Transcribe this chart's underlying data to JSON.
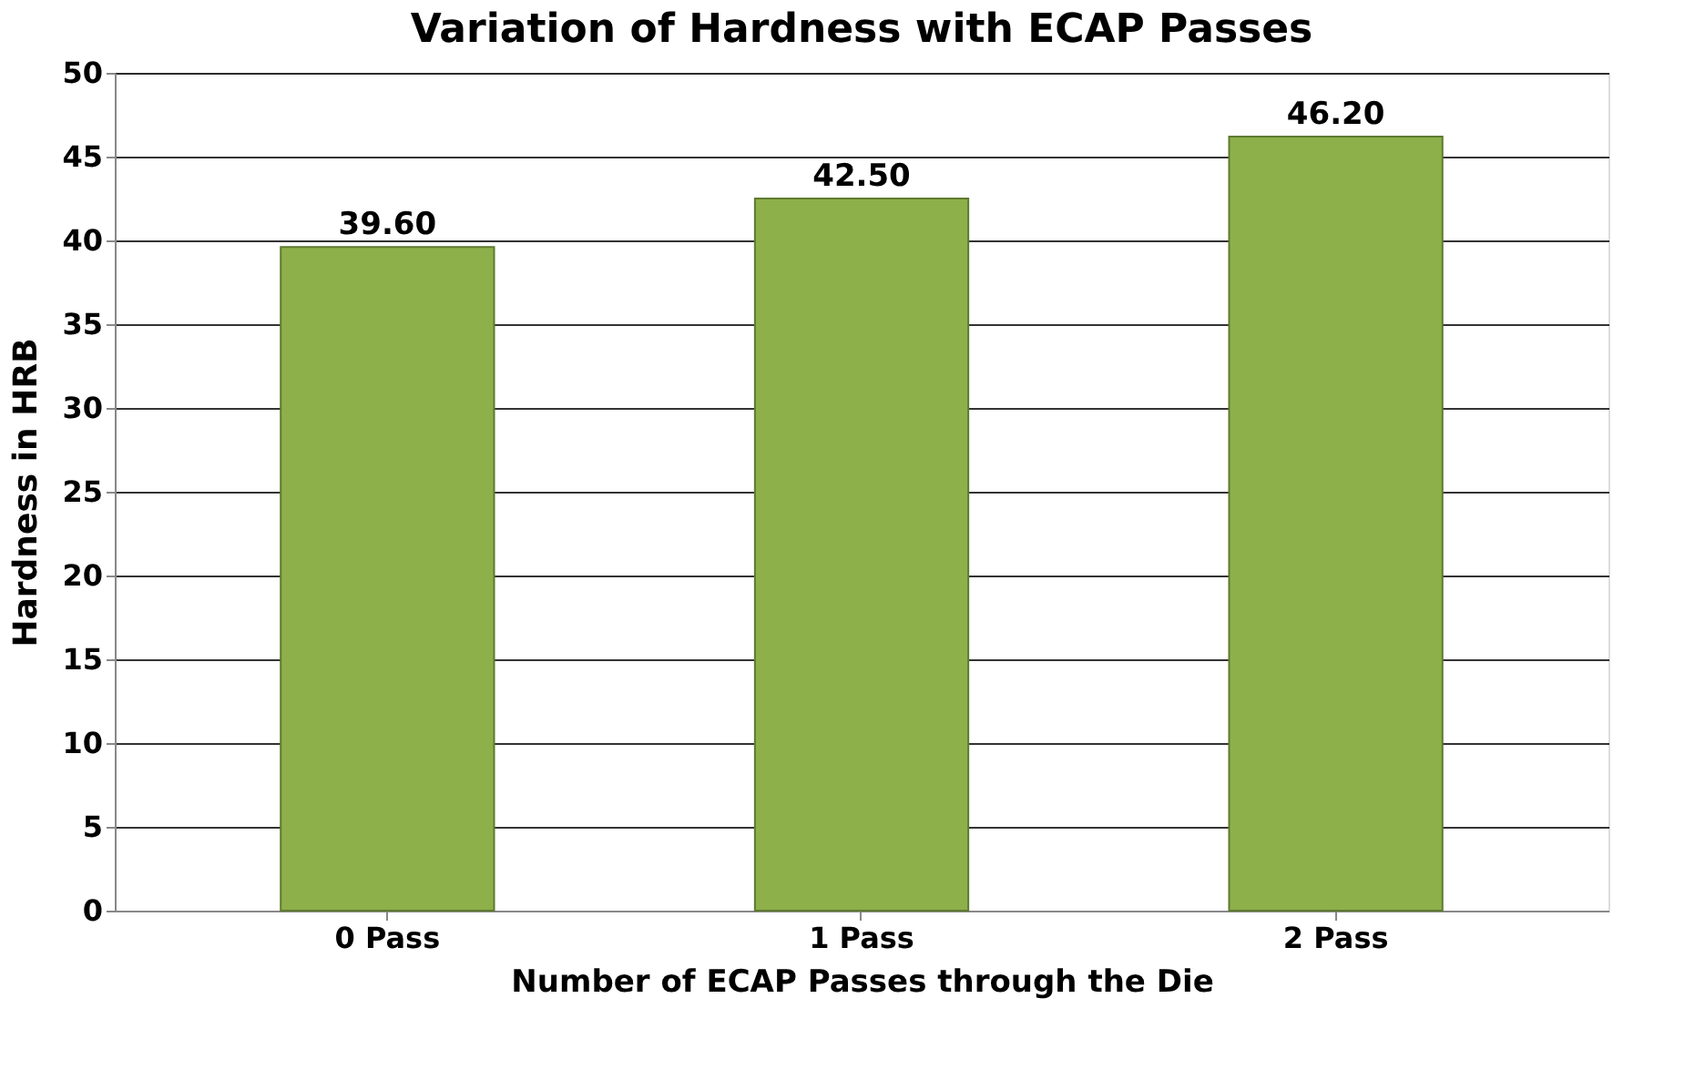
{
  "chart_data": {
    "type": "bar",
    "title": "Variation of Hardness with ECAP Passes",
    "xlabel": "Number of ECAP Passes through the Die",
    "ylabel": "Hardness in HRB",
    "categories": [
      "0 Pass",
      "1 Pass",
      "2 Pass"
    ],
    "values": [
      39.6,
      42.5,
      46.2
    ],
    "value_labels": [
      "39.60",
      "42.50",
      "46.20"
    ],
    "color": "#8db04a",
    "ylim": [
      0,
      50
    ],
    "yticks": [
      0,
      5,
      10,
      15,
      20,
      25,
      30,
      35,
      40,
      45,
      50
    ],
    "grid": "y"
  }
}
